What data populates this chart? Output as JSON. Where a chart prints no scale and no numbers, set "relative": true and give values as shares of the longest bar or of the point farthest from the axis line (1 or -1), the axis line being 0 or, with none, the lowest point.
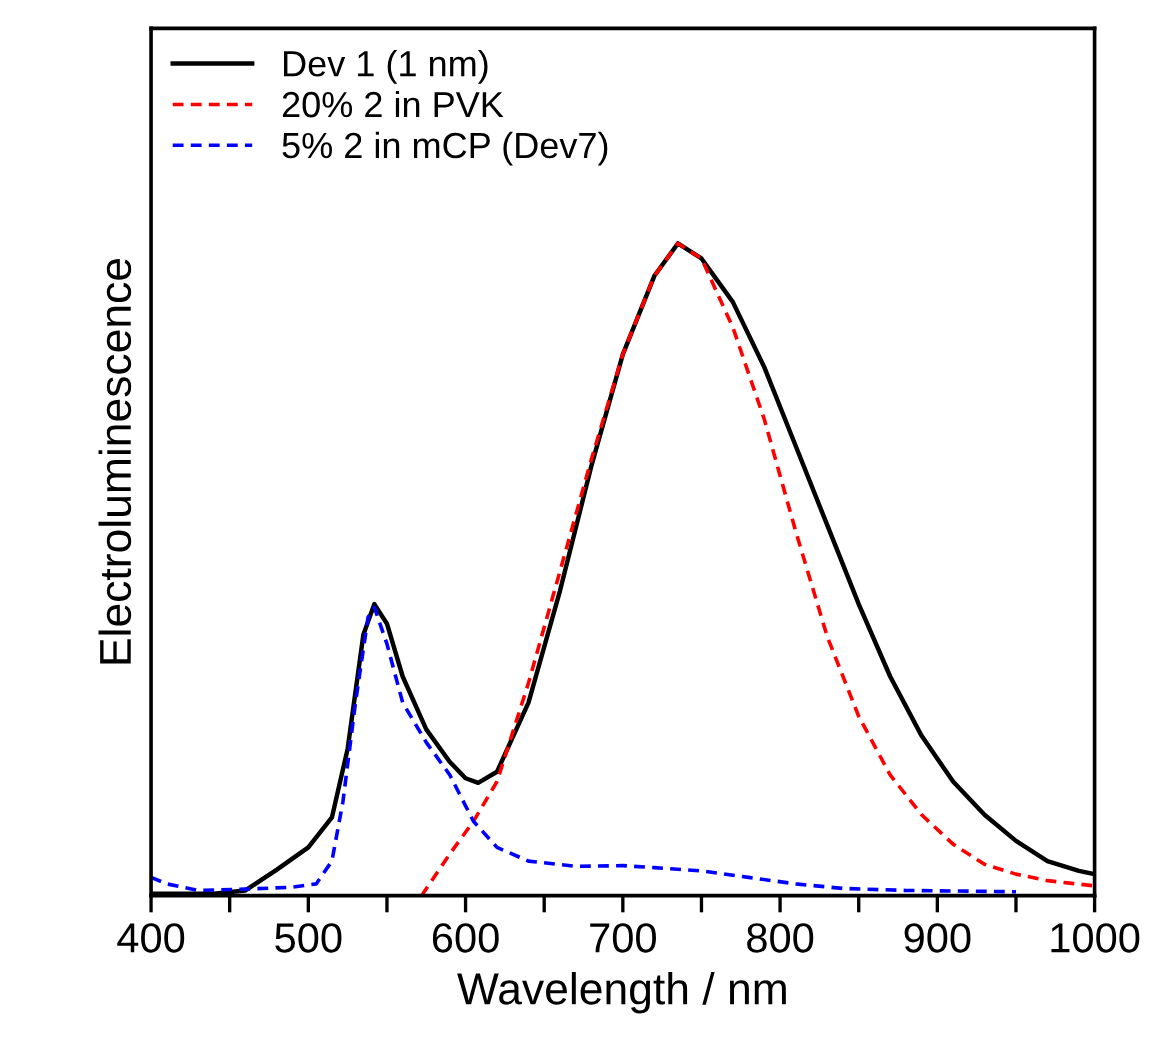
{
  "chart_data": {
    "type": "line",
    "relative": true,
    "xlabel": "Wavelength / nm",
    "ylabel": "Electroluminescence",
    "xlim": [
      400,
      1000
    ],
    "xticks": [
      400,
      {
        "value": 450,
        "label": null
      },
      500,
      {
        "value": 550,
        "label": null
      },
      600,
      {
        "value": 650,
        "label": null
      },
      700,
      {
        "value": 750,
        "label": null
      },
      800,
      {
        "value": 850,
        "label": null
      },
      900,
      {
        "value": 950,
        "label": null
      },
      1000
    ],
    "tick_labels": "x",
    "legend": "top left",
    "grid": false,
    "series": [
      {
        "name": "Dev 1 (1 nm)",
        "color": "#000000",
        "line_style": "solid",
        "x": [
          400,
          440,
          460,
          480,
          500,
          515,
          525,
          535,
          542,
          550,
          560,
          575,
          590,
          600,
          608,
          620,
          640,
          660,
          680,
          700,
          720,
          735,
          750,
          770,
          790,
          810,
          830,
          850,
          870,
          890,
          910,
          930,
          950,
          970,
          990,
          1000
        ],
        "values": [
          0.003,
          0.003,
          0.008,
          0.04,
          0.074,
          0.12,
          0.225,
          0.4,
          0.447,
          0.417,
          0.336,
          0.255,
          0.205,
          0.18,
          0.173,
          0.19,
          0.296,
          0.467,
          0.659,
          0.83,
          0.95,
          1.0,
          0.977,
          0.91,
          0.81,
          0.689,
          0.568,
          0.447,
          0.336,
          0.245,
          0.175,
          0.124,
          0.084,
          0.053,
          0.038,
          0.033
        ]
      },
      {
        "name": "20% 2 in PVK",
        "color": "#ff0000",
        "line_style": "dashed",
        "x": [
          572,
          590,
          605,
          620,
          640,
          660,
          680,
          700,
          720,
          735,
          750,
          770,
          790,
          810,
          830,
          850,
          870,
          890,
          910,
          930,
          950,
          970,
          1000
        ],
        "values": [
          0.0,
          0.064,
          0.114,
          0.175,
          0.326,
          0.497,
          0.669,
          0.83,
          0.95,
          1.0,
          0.977,
          0.871,
          0.73,
          0.558,
          0.397,
          0.275,
          0.185,
          0.124,
          0.079,
          0.048,
          0.033,
          0.023,
          0.015
        ]
      },
      {
        "name": "5% 2 in mCP (Dev7)",
        "color": "#0000ff",
        "line_style": "dashed",
        "x": [
          400,
          410,
          430,
          460,
          490,
          505,
          515,
          522,
          530,
          538,
          542,
          550,
          560,
          575,
          590,
          605,
          620,
          640,
          670,
          700,
          720,
          750,
          780,
          810,
          840,
          880,
          950
        ],
        "values": [
          0.028,
          0.018,
          0.008,
          0.01,
          0.013,
          0.018,
          0.053,
          0.144,
          0.296,
          0.427,
          0.442,
          0.386,
          0.296,
          0.235,
          0.185,
          0.114,
          0.074,
          0.053,
          0.045,
          0.046,
          0.043,
          0.038,
          0.028,
          0.018,
          0.011,
          0.008,
          0.006
        ]
      }
    ]
  }
}
